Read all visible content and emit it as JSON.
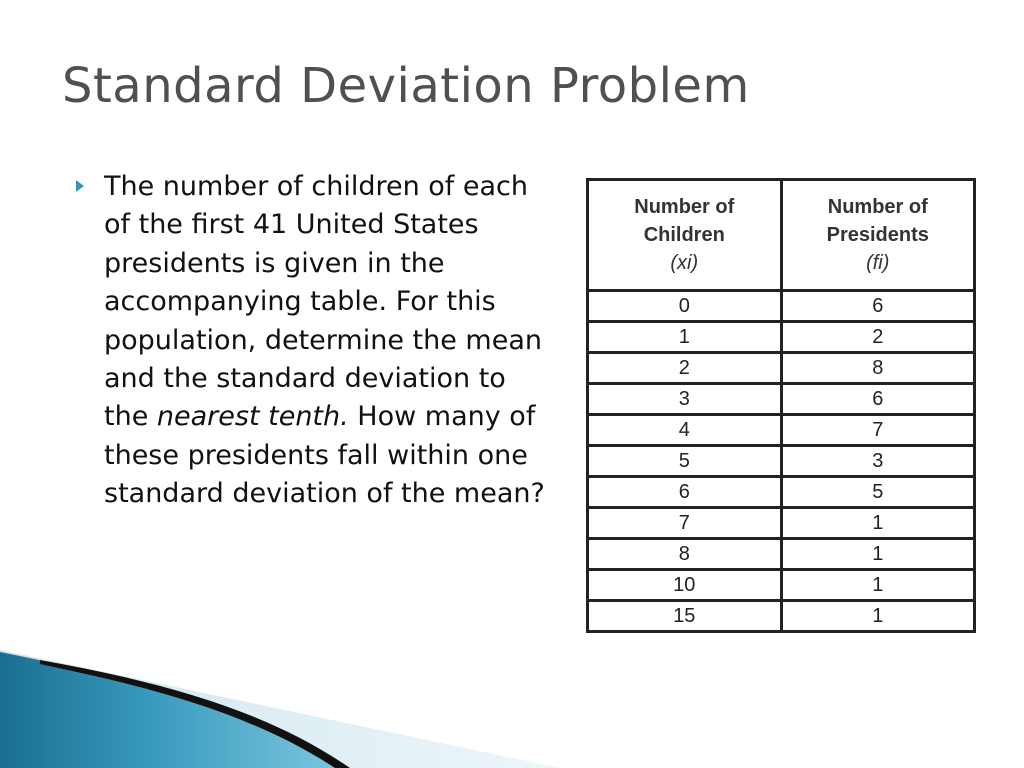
{
  "slide": {
    "title": "Standard Deviation Problem",
    "bullet": {
      "text_before": "The number of children of each of the first 41 United States presidents is given in the accompanying table.  For this population, determine the mean and the standard deviation to the ",
      "emphasis": "nearest tenth.",
      "text_after": " How many of these presidents fall within one standard deviation of the mean?"
    }
  },
  "table": {
    "col1_header": {
      "line1": "Number of",
      "line2": "Children",
      "symbol": "(xi)"
    },
    "col2_header": {
      "line1": "Number of",
      "line2": "Presidents",
      "symbol": "(fi)"
    },
    "rows": [
      {
        "children": "0",
        "presidents": "6"
      },
      {
        "children": "1",
        "presidents": "2"
      },
      {
        "children": "2",
        "presidents": "8"
      },
      {
        "children": "3",
        "presidents": "6"
      },
      {
        "children": "4",
        "presidents": "7"
      },
      {
        "children": "5",
        "presidents": "3"
      },
      {
        "children": "6",
        "presidents": "5"
      },
      {
        "children": "7",
        "presidents": "1"
      },
      {
        "children": "8",
        "presidents": "1"
      },
      {
        "children": "10",
        "presidents": "1"
      },
      {
        "children": "15",
        "presidents": "1"
      }
    ]
  },
  "colors": {
    "bullet": "#3a93b5",
    "title": "#505050",
    "wave_dark": "#1a6f8f",
    "wave_light": "#5ab4d2"
  }
}
